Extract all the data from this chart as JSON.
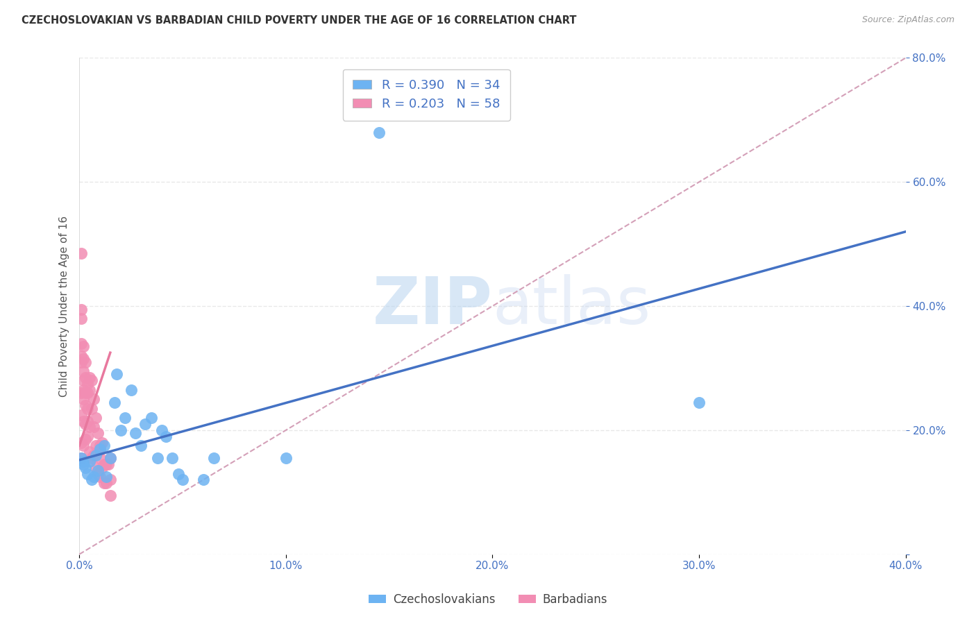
{
  "title": "CZECHOSLOVAKIAN VS BARBADIAN CHILD POVERTY UNDER THE AGE OF 16 CORRELATION CHART",
  "source": "Source: ZipAtlas.com",
  "ylabel": "Child Poverty Under the Age of 16",
  "xlim": [
    0,
    0.4
  ],
  "ylim": [
    0,
    0.8
  ],
  "xticks": [
    0.0,
    0.1,
    0.2,
    0.3,
    0.4
  ],
  "yticks": [
    0.0,
    0.2,
    0.4,
    0.6,
    0.8
  ],
  "watermark_zip": "ZIP",
  "watermark_atlas": "atlas",
  "czech_color": "#6db3f2",
  "barb_color": "#f28db3",
  "czech_line_color": "#4472c4",
  "barb_line_color": "#e8789e",
  "ref_line_color": "#c8a0c0",
  "czech_R": 0.39,
  "czech_N": 34,
  "barb_R": 0.203,
  "barb_N": 58,
  "czech_x": [
    0.001,
    0.002,
    0.002,
    0.003,
    0.004,
    0.005,
    0.006,
    0.007,
    0.008,
    0.009,
    0.01,
    0.012,
    0.013,
    0.015,
    0.017,
    0.018,
    0.02,
    0.022,
    0.025,
    0.027,
    0.03,
    0.032,
    0.035,
    0.038,
    0.04,
    0.042,
    0.045,
    0.048,
    0.05,
    0.06,
    0.065,
    0.1,
    0.145,
    0.3
  ],
  "czech_y": [
    0.155,
    0.15,
    0.145,
    0.14,
    0.13,
    0.15,
    0.12,
    0.125,
    0.16,
    0.135,
    0.17,
    0.175,
    0.125,
    0.155,
    0.245,
    0.29,
    0.2,
    0.22,
    0.265,
    0.195,
    0.175,
    0.21,
    0.22,
    0.155,
    0.2,
    0.19,
    0.155,
    0.13,
    0.12,
    0.12,
    0.155,
    0.155,
    0.68,
    0.245
  ],
  "barb_x": [
    0.001,
    0.001,
    0.001,
    0.001,
    0.001,
    0.001,
    0.001,
    0.001,
    0.001,
    0.001,
    0.002,
    0.002,
    0.002,
    0.002,
    0.002,
    0.002,
    0.002,
    0.002,
    0.003,
    0.003,
    0.003,
    0.003,
    0.003,
    0.003,
    0.004,
    0.004,
    0.004,
    0.004,
    0.004,
    0.005,
    0.005,
    0.005,
    0.005,
    0.006,
    0.006,
    0.006,
    0.007,
    0.007,
    0.007,
    0.008,
    0.008,
    0.008,
    0.009,
    0.009,
    0.009,
    0.01,
    0.01,
    0.01,
    0.011,
    0.011,
    0.012,
    0.012,
    0.013,
    0.013,
    0.014,
    0.015,
    0.015,
    0.015
  ],
  "barb_y": [
    0.485,
    0.395,
    0.38,
    0.34,
    0.32,
    0.31,
    0.26,
    0.225,
    0.18,
    0.155,
    0.335,
    0.315,
    0.295,
    0.28,
    0.265,
    0.25,
    0.215,
    0.175,
    0.31,
    0.285,
    0.26,
    0.24,
    0.21,
    0.185,
    0.275,
    0.26,
    0.235,
    0.215,
    0.19,
    0.285,
    0.265,
    0.205,
    0.165,
    0.28,
    0.235,
    0.155,
    0.25,
    0.205,
    0.16,
    0.22,
    0.175,
    0.14,
    0.195,
    0.165,
    0.13,
    0.175,
    0.155,
    0.125,
    0.18,
    0.14,
    0.145,
    0.115,
    0.145,
    0.115,
    0.145,
    0.155,
    0.12,
    0.095
  ],
  "legend_text_color": "#4472c4",
  "grid_color": "#e8e8e8",
  "axis_tick_color": "#4472c4",
  "background_color": "#ffffff"
}
